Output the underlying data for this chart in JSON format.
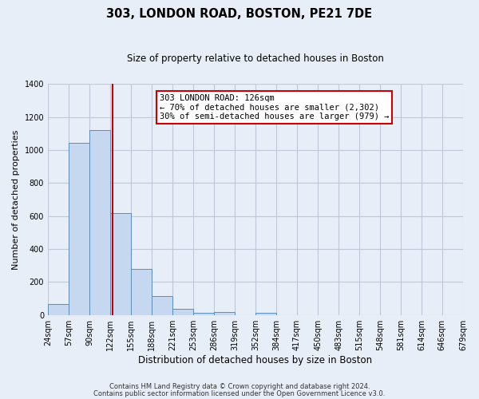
{
  "title": "303, LONDON ROAD, BOSTON, PE21 7DE",
  "subtitle": "Size of property relative to detached houses in Boston",
  "xlabel": "Distribution of detached houses by size in Boston",
  "ylabel": "Number of detached properties",
  "footer_line1": "Contains HM Land Registry data © Crown copyright and database right 2024.",
  "footer_line2": "Contains public sector information licensed under the Open Government Licence v3.0.",
  "annotation_title": "303 LONDON ROAD: 126sqm",
  "annotation_line1": "← 70% of detached houses are smaller (2,302)",
  "annotation_line2": "30% of semi-detached houses are larger (979) →",
  "bar_color": "#c5d8f0",
  "bar_edge_color": "#5b8db8",
  "marker_line_color": "#cc0000",
  "marker_value": 126,
  "annotation_box_color": "#ffffff",
  "annotation_box_edge_color": "#cc0000",
  "bins": [
    24,
    57,
    90,
    122,
    155,
    188,
    221,
    253,
    286,
    319,
    352,
    384,
    417,
    450,
    483,
    515,
    548,
    581,
    614,
    646,
    679
  ],
  "counts": [
    65,
    1045,
    1120,
    620,
    280,
    115,
    38,
    14,
    20,
    0,
    15,
    0,
    0,
    0,
    0,
    0,
    0,
    0,
    0,
    0
  ],
  "ylim": [
    0,
    1400
  ],
  "yticks": [
    0,
    200,
    400,
    600,
    800,
    1000,
    1200,
    1400
  ],
  "background_color": "#e8eef7",
  "plot_bg_color": "#e8eef7",
  "grid_color": "#c0c8d8"
}
